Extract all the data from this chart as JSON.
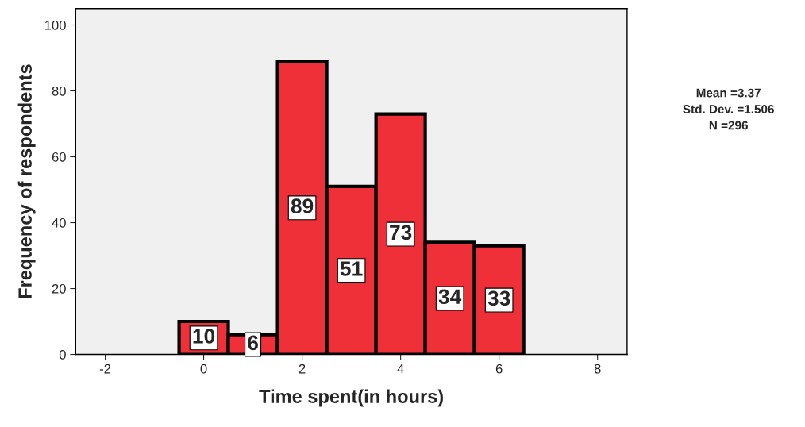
{
  "chart_data": {
    "type": "histogram",
    "xlabel": "Time spent(in hours)",
    "ylabel": "Frequency of respondents",
    "bins": [
      -0.5,
      0.5,
      1.5,
      2.5,
      3.5,
      4.5,
      5.5,
      6.5
    ],
    "values": [
      10,
      6,
      89,
      51,
      73,
      34,
      33
    ],
    "color": "#ef3038",
    "data_labels": true,
    "xlim": [
      -2.6,
      8.6
    ],
    "xticks": [
      -2,
      0,
      2,
      4,
      6,
      8
    ],
    "ylim": [
      0,
      105
    ],
    "yticks": [
      0,
      20,
      40,
      60,
      80,
      100
    ],
    "grid": false,
    "legend": false,
    "annotations": [
      "Mean =3.37",
      "Std. Dev. =1.506",
      "N =296"
    ]
  }
}
